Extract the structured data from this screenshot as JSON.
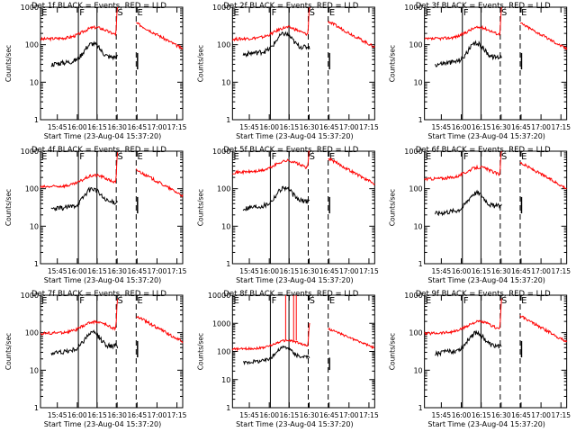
{
  "chart_data": [
    {
      "type": "line",
      "title": "Det 1f BLACK = Events, RED = LLD",
      "ylim": [
        1,
        1000
      ],
      "ylog": true
    },
    {
      "type": "line",
      "title": "Det 2f BLACK = Events, RED = LLD",
      "ylim": [
        1,
        1000
      ],
      "ylog": true
    },
    {
      "type": "line",
      "title": "Det 3f BLACK = Events, RED = LLD",
      "ylim": [
        1,
        1000
      ],
      "ylog": true
    },
    {
      "type": "line",
      "title": "Det 4f BLACK = Events, RED = LLD",
      "ylim": [
        1,
        1000
      ],
      "ylog": true
    },
    {
      "type": "line",
      "title": "Det 5f BLACK = Events, RED = LLD",
      "ylim": [
        1,
        1000
      ],
      "ylog": true
    },
    {
      "type": "line",
      "title": "Det 6f BLACK = Events, RED = LLD",
      "ylim": [
        1,
        1000
      ],
      "ylog": true
    },
    {
      "type": "line",
      "title": "Det 7f BLACK = Events, RED = LLD",
      "ylim": [
        1,
        1000
      ],
      "ylog": true
    },
    {
      "type": "line",
      "title": "Det 8f BLACK = Events, RED = LLD",
      "ylim": [
        1,
        10000
      ],
      "ylog": true
    },
    {
      "type": "line",
      "title": "Det 9f BLACK = Events, RED = LLD",
      "ylim": [
        1,
        1000
      ],
      "ylog": true
    }
  ],
  "shared": {
    "xlabel": "Start Time (23-Aug-04 15:37:20)",
    "ylabel": "Counts/sec",
    "x_ticks": [
      "15:45",
      "16:00",
      "16:15",
      "16:30",
      "16:45",
      "17:00",
      "17:15"
    ],
    "y_ticks_1000": [
      "1",
      "10",
      "100",
      "1000"
    ],
    "y_ticks_10000": [
      "1",
      "10",
      "100",
      "1000",
      "10000"
    ],
    "markers": [
      "E",
      "F",
      "S",
      "E"
    ],
    "series": [
      {
        "name": "BLACK = Events",
        "color": "#000000"
      },
      {
        "name": "RED = LLD",
        "color": "#ff0000"
      }
    ]
  }
}
